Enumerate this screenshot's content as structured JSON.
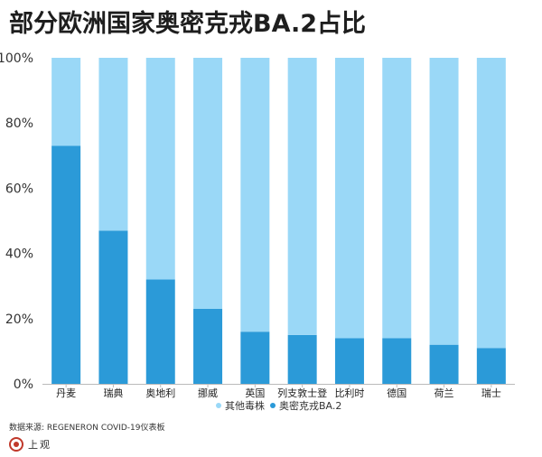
{
  "title": "部分欧洲国家奥密克戎BA.2占比",
  "source": "数据来源: REGENERON COVID-19仪表板",
  "logo_text": "上观",
  "colors": {
    "ba2": "#2b9ad8",
    "other": "#9ad8f7",
    "axis": "#bbbbbb",
    "logo": "#c0392b"
  },
  "chart_data": {
    "type": "bar",
    "stacked": true,
    "categories": [
      "丹麦",
      "瑞典",
      "奥地利",
      "挪威",
      "英国",
      "列支敦士登",
      "比利时",
      "德国",
      "荷兰",
      "瑞士"
    ],
    "series": [
      {
        "name": "奥密克戎BA.2",
        "values": [
          73,
          47,
          32,
          23,
          16,
          15,
          14,
          14,
          12,
          11
        ]
      },
      {
        "name": "其他毒株",
        "values": [
          27,
          53,
          68,
          77,
          84,
          85,
          86,
          86,
          88,
          89
        ]
      }
    ],
    "ylim": [
      0,
      100
    ],
    "yticks": [
      "0%",
      "20%",
      "40%",
      "60%",
      "80%",
      "100%"
    ],
    "legend": {
      "placement": "bottom",
      "items": [
        "其他毒株",
        "奥密克戎BA.2"
      ]
    },
    "grid": false
  }
}
